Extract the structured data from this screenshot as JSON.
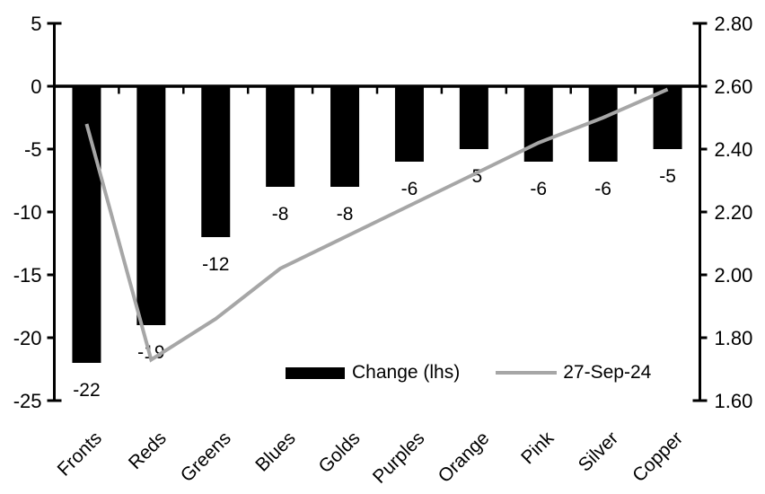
{
  "chart_data": {
    "type": "combo-bar-line",
    "title": "",
    "categories": [
      "Fronts",
      "Reds",
      "Greens",
      "Blues",
      "Golds",
      "Purples",
      "Orange",
      "Pink",
      "Silver",
      "Copper"
    ],
    "series": [
      {
        "name": "Change (lhs)",
        "type": "bar",
        "axis": "left",
        "values": [
          -22,
          -19,
          -12,
          -8,
          -8,
          -6,
          -5,
          -6,
          -6,
          -5
        ],
        "data_labels": [
          "-22",
          "-19",
          "-12",
          "-8",
          "-8",
          "-6",
          "-5",
          "-6",
          "-6",
          "-5"
        ]
      },
      {
        "name": "27-Sep-24",
        "type": "line",
        "axis": "right",
        "values": [
          2.48,
          1.73,
          1.86,
          2.02,
          2.12,
          2.22,
          2.32,
          2.42,
          2.5,
          2.59
        ]
      }
    ],
    "left_axis": {
      "tick_labels": [
        "5",
        "0",
        "-5",
        "-10",
        "-15",
        "-20",
        "-25"
      ],
      "max": 5,
      "min": -25
    },
    "right_axis": {
      "tick_labels": [
        "2.80",
        "2.60",
        "2.40",
        "2.20",
        "2.00",
        "1.80",
        "1.60"
      ],
      "max": 2.8,
      "min": 1.6
    },
    "legend": {
      "position": "bottom-center",
      "entries": [
        "Change (lhs)",
        "27-Sep-24"
      ]
    },
    "grid": false,
    "xlabel": "",
    "ylabel": ""
  },
  "colors": {
    "bar": "#000000",
    "line": "#a6a6a6",
    "axis": "#000000",
    "text": "#000000",
    "background": "#ffffff"
  }
}
